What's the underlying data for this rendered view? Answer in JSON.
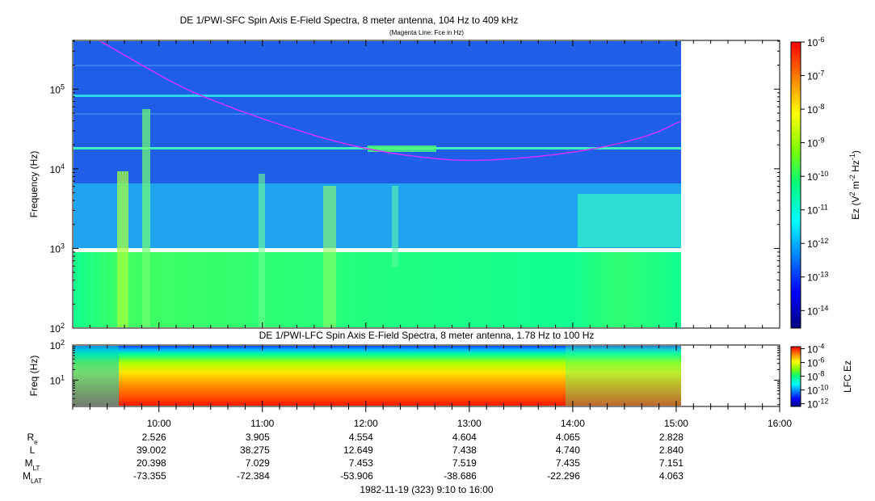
{
  "top_title": "DE 1/PWI-SFC  Spin Axis E-Field Spectra, 8 meter antenna, 104 Hz to 409 kHz",
  "top_subtitle": "(Magenta Line: Fce in Hz)",
  "bottom_title": "DE 1/PWI-LFC  Spin Axis E-Field Spectra, 8 meter antenna, 1.78 Hz to 100 Hz",
  "time_range_label": "1982-11-19 (323) 9:10 to 16:00",
  "colors": {
    "spectrogram_background": "#1f5fe8",
    "fce_line": "#cc33ff",
    "colorbar_stops": [
      "#00007f",
      "#0000ff",
      "#0080ff",
      "#00ffff",
      "#00ff80",
      "#80ff00",
      "#ffff00",
      "#ff8000",
      "#ff0000"
    ]
  },
  "chart_data": [
    {
      "type": "heatmap",
      "name": "sfc",
      "ylabel": "Frequency (Hz)",
      "yscale": "log",
      "ylim": [
        100,
        409000
      ],
      "y_ticks": [
        {
          "base": "10",
          "exp": "2",
          "value": 100
        },
        {
          "base": "10",
          "exp": "3",
          "value": 1000
        },
        {
          "base": "10",
          "exp": "4",
          "value": 10000
        },
        {
          "base": "10",
          "exp": "5",
          "value": 100000
        }
      ],
      "xlim": [
        "09:10",
        "16:00"
      ],
      "data_end": "15:03",
      "colorbar": {
        "label_main": "Ez (V",
        "label_sup1": "2",
        "label_mid": " m",
        "label_sup2": "-2",
        "label_mid2": " Hz",
        "label_sup3": "-1",
        "label_end": ")",
        "scale": "log",
        "range": [
          3e-15,
          1e-06
        ],
        "ticks": [
          {
            "base": "10",
            "exp": "-6",
            "value": 1e-06
          },
          {
            "base": "10",
            "exp": "-7",
            "value": 1e-07
          },
          {
            "base": "10",
            "exp": "-8",
            "value": 1e-08
          },
          {
            "base": "10",
            "exp": "-9",
            "value": 1e-09
          },
          {
            "base": "10",
            "exp": "-10",
            "value": 1e-10
          },
          {
            "base": "10",
            "exp": "-11",
            "value": 1e-11
          },
          {
            "base": "10",
            "exp": "-12",
            "value": 1e-12
          },
          {
            "base": "10",
            "exp": "-13",
            "value": 1e-13
          },
          {
            "base": "10",
            "exp": "-14",
            "value": 1e-14
          }
        ]
      },
      "fce_line": [
        {
          "t": "09:26",
          "f": 400000
        },
        {
          "t": "09:50",
          "f": 200000
        },
        {
          "t": "10:15",
          "f": 100000
        },
        {
          "t": "10:45",
          "f": 55000
        },
        {
          "t": "11:15",
          "f": 33000
        },
        {
          "t": "11:45",
          "f": 21000
        },
        {
          "t": "12:15",
          "f": 15500
        },
        {
          "t": "12:45",
          "f": 13000
        },
        {
          "t": "13:00",
          "f": 12700
        },
        {
          "t": "13:15",
          "f": 12900
        },
        {
          "t": "13:45",
          "f": 14500
        },
        {
          "t": "14:15",
          "f": 18000
        },
        {
          "t": "14:45",
          "f": 26000
        },
        {
          "t": "15:03",
          "f": 40000
        }
      ]
    },
    {
      "type": "heatmap",
      "name": "lfc",
      "ylabel": "Freq (Hz)",
      "yscale": "log",
      "ylim": [
        1.78,
        100
      ],
      "y_ticks": [
        {
          "base": "10",
          "exp": "1",
          "value": 10
        },
        {
          "base": "10",
          "exp": "2",
          "value": 100
        }
      ],
      "xlim": [
        "09:10",
        "16:00"
      ],
      "data_end": "15:03",
      "colorbar": {
        "label": "LFC Ez",
        "scale": "log",
        "range": [
          4e-13,
          0.0002
        ],
        "ticks": [
          {
            "base": "10",
            "exp": "-4",
            "value": 0.0001
          },
          {
            "base": "10",
            "exp": "-6",
            "value": 1e-06
          },
          {
            "base": "10",
            "exp": "-8",
            "value": 1e-08
          },
          {
            "base": "10",
            "exp": "-10",
            "value": 1e-10
          },
          {
            "base": "10",
            "exp": "-12",
            "value": 1e-12
          }
        ]
      }
    }
  ],
  "x_ticks": [
    "10:00",
    "11:00",
    "12:00",
    "13:00",
    "14:00",
    "15:00",
    "16:00"
  ],
  "ephemeris": {
    "rows": [
      {
        "label": "R",
        "sub": "e",
        "values": [
          "2.526",
          "3.905",
          "4.554",
          "4.604",
          "4.065",
          "2.828"
        ]
      },
      {
        "label": "L",
        "sub": "",
        "values": [
          "39.002",
          "38.275",
          "12.649",
          "7.438",
          "4.740",
          "2.840"
        ]
      },
      {
        "label": "M",
        "sub": "LT",
        "values": [
          "20.398",
          "7.029",
          "7.453",
          "7.519",
          "7.435",
          "7.151"
        ]
      },
      {
        "label": "M",
        "sub": "LAT",
        "values": [
          "-73.355",
          "-72.384",
          "-53.906",
          "-38.686",
          "-22.296",
          "4.063"
        ]
      }
    ]
  }
}
